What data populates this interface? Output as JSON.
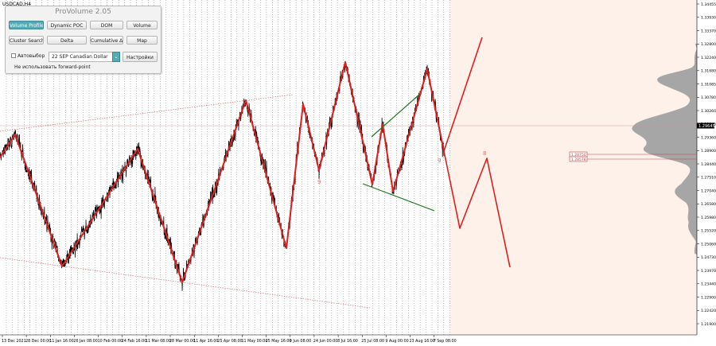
{
  "symbol": "USDCAD,H4",
  "panel": {
    "title": "ProVolume 2.05",
    "buttons": {
      "volume_profile": "Volume Profile",
      "dynamic_poc": "Dynamic POC",
      "dom": "DOM",
      "volume": "Volume",
      "cluster_search": "Cluster Search",
      "delta": "Delta",
      "cumulative_delta": "Cumulative Δ",
      "map": "Map",
      "settings": "Настройки"
    },
    "auto_select_label": "Автовыбор",
    "auto_select_checked": false,
    "instrument_value": "22 SEP Canadian Dollar",
    "forward_point_label": "Не использовать forward-point",
    "active_button": "volume_profile"
  },
  "price_axis": {
    "labels": [
      "1.34455",
      "1.33930",
      "1.33370",
      "1.32800",
      "1.32240",
      "1.31680",
      "1.31085",
      "1.30780",
      "1.30260",
      "1.29645",
      "1.29360",
      "1.28900",
      "1.28440",
      "1.27510",
      "1.27040",
      "1.26580",
      "1.25980",
      "1.25520",
      "1.25060",
      "1.24730",
      "1.23970",
      "1.23440",
      "1.22900",
      "1.22420",
      "1.21900"
    ],
    "current_price": "1.29645",
    "marked_prices": [
      "1.28750",
      "1.28578"
    ]
  },
  "time_axis": {
    "labels": [
      "13 Dec 2021",
      "28 Dec 00:00",
      "11 Jan 16:00",
      "26 Jan 08:00",
      "10 Feb 00:00",
      "24 Feb 16:00",
      "11 Mar 08:00",
      "28 Mar 00:00",
      "11 Apr 16:00",
      "25 Apr 08:00",
      "11 May 00:00",
      "25 May 16:00",
      "9 Jun 08:00",
      "24 Jun 00:00",
      "8 Jul 16:00",
      "25 Jul 08:00",
      "9 Aug 00:00",
      "23 Aug 16:00",
      "7 Sep 08:00"
    ]
  },
  "wave_labels": [
    "9",
    "9",
    "8"
  ],
  "colors": {
    "price_line": "#000000",
    "wave": "#e21d1d",
    "trend_green": "#1f7a1f",
    "channel_dotted": "#d46a6a",
    "profile": "#a6a6a6",
    "forecast_bg": "#fdf1ea",
    "active_button": "#54aab5"
  }
}
